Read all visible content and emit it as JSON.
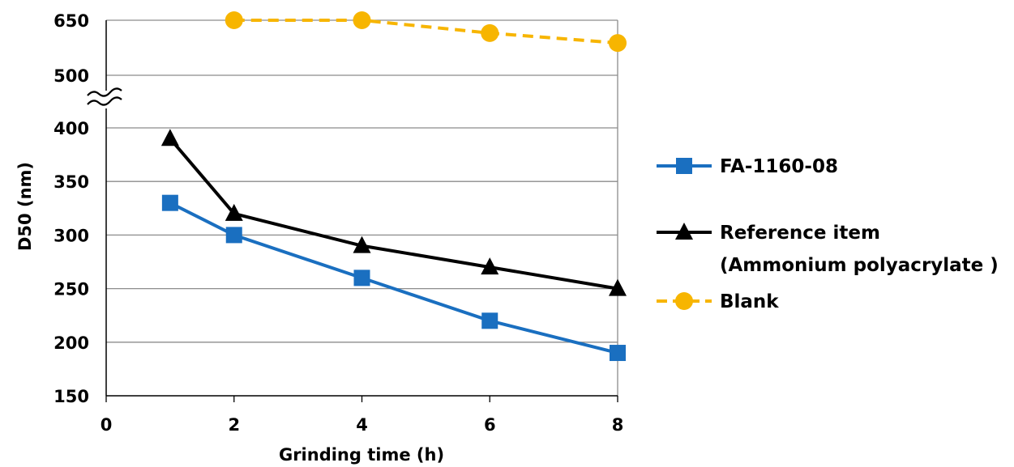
{
  "chart_data": {
    "type": "line",
    "xlabel": "Grinding time (h)",
    "ylabel": "D50 (nm)",
    "xlim": [
      0,
      8
    ],
    "x_ticks": [
      0,
      2,
      4,
      6,
      8
    ],
    "y_tick_labels": [
      "150",
      "200",
      "250",
      "300",
      "350",
      "400",
      "500",
      "650"
    ],
    "axis_break": "between 400 and 500",
    "grid": "horizontal",
    "legend_position": "right",
    "series": [
      {
        "name": "FA-1160-08",
        "color": "#1a6fc0",
        "marker": "square",
        "line": "solid",
        "x": [
          1,
          2,
          4,
          6,
          8
        ],
        "y": [
          330,
          300,
          260,
          220,
          190
        ]
      },
      {
        "name": "Reference item",
        "name_line2": "(Ammonium polyacrylate )",
        "color": "#000000",
        "marker": "triangle",
        "line": "solid",
        "x": [
          1,
          2,
          4,
          6,
          8
        ],
        "y": [
          390,
          320,
          290,
          270,
          250
        ]
      },
      {
        "name": "Blank",
        "color": "#f7b500",
        "marker": "circle",
        "line": "dashed",
        "x": [
          2,
          4,
          6,
          8
        ],
        "y": [
          650,
          650,
          615,
          588
        ]
      }
    ]
  }
}
